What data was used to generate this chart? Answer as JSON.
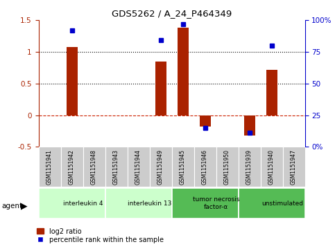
{
  "title": "GDS5262 / A_24_P464349",
  "samples": [
    "GSM1151941",
    "GSM1151942",
    "GSM1151948",
    "GSM1151943",
    "GSM1151944",
    "GSM1151949",
    "GSM1151945",
    "GSM1151946",
    "GSM1151950",
    "GSM1151939",
    "GSM1151940",
    "GSM1151947"
  ],
  "log2_ratio": [
    0.0,
    1.08,
    0.0,
    0.0,
    0.0,
    0.85,
    1.38,
    -0.18,
    0.0,
    -0.32,
    0.72,
    0.0
  ],
  "percentile_rank": [
    null,
    92,
    null,
    null,
    null,
    84,
    97,
    15,
    null,
    11,
    80,
    null
  ],
  "agents": [
    {
      "label": "interleukin 4",
      "start": 0,
      "end": 3,
      "color": "#ccffcc"
    },
    {
      "label": "interleukin 13",
      "start": 3,
      "end": 6,
      "color": "#ccffcc"
    },
    {
      "label": "tumor necrosis\nfactor-α",
      "start": 6,
      "end": 9,
      "color": "#55bb55"
    },
    {
      "label": "unstimulated",
      "start": 9,
      "end": 12,
      "color": "#55bb55"
    }
  ],
  "ylim_left": [
    -0.5,
    1.5
  ],
  "ylim_right": [
    0,
    100
  ],
  "bar_color": "#aa2200",
  "dot_color": "#0000cc",
  "background_color": "#ffffff",
  "zero_line_color": "#cc2200",
  "sample_box_color": "#cccccc",
  "legend_bar_label": "log2 ratio",
  "legend_dot_label": "percentile rank within the sample"
}
